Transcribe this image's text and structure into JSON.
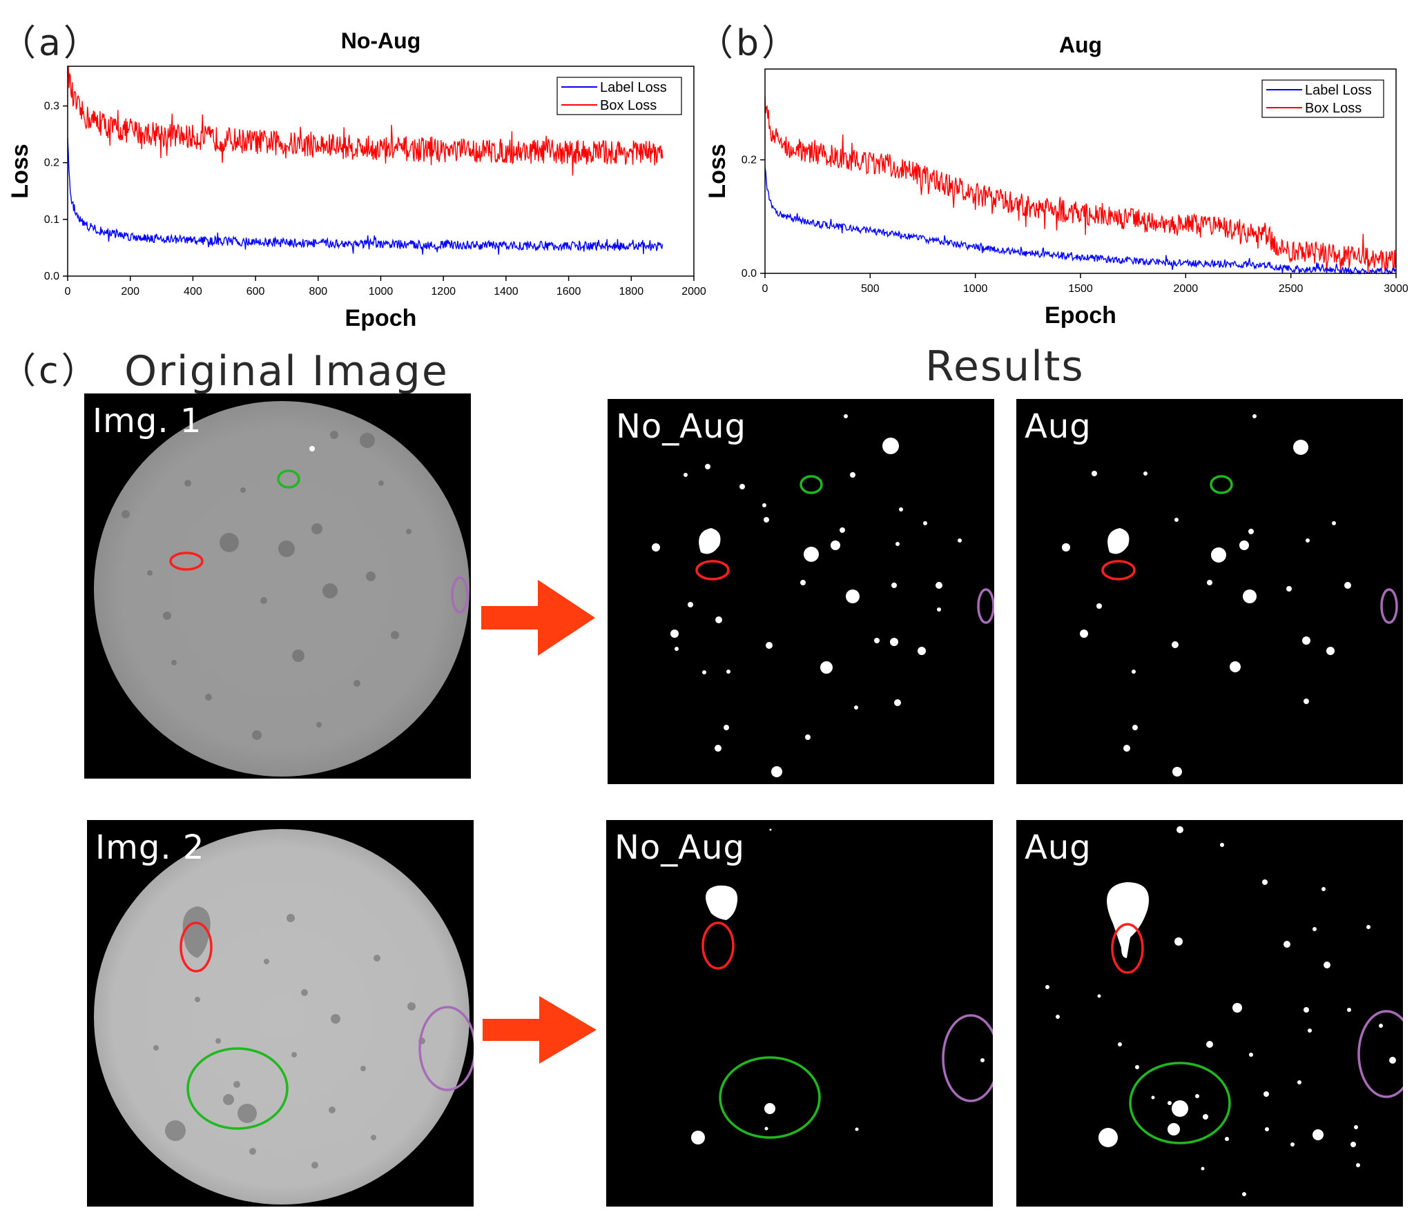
{
  "panels": {
    "a": "（a）",
    "b": "（b）",
    "c": "（c）"
  },
  "chart_data": [
    {
      "type": "line",
      "title": "No-Aug",
      "xlabel": "Epoch",
      "ylabel": "Loss",
      "xlim": [
        0,
        2000
      ],
      "ylim": [
        0,
        0.37
      ],
      "xticks": [
        0,
        200,
        400,
        600,
        800,
        1000,
        1200,
        1400,
        1600,
        1800,
        2000
      ],
      "yticks": [
        0.0,
        0.1,
        0.2,
        0.3
      ],
      "ytick_labels": [
        "0.0",
        "0.1",
        "0.2",
        "0.3"
      ],
      "legend_position": "top-right",
      "series": [
        {
          "name": "Label Loss",
          "color": "#0000ff",
          "x": [
            0,
            5,
            10,
            20,
            40,
            60,
            100,
            150,
            200,
            300,
            400,
            600,
            800,
            1000,
            1200,
            1400,
            1600,
            1800,
            1900
          ],
          "y": [
            0.24,
            0.17,
            0.14,
            0.12,
            0.1,
            0.09,
            0.08,
            0.075,
            0.07,
            0.066,
            0.063,
            0.06,
            0.058,
            0.056,
            0.055,
            0.054,
            0.053,
            0.052,
            0.052
          ],
          "noise": 0.008
        },
        {
          "name": "Box Loss",
          "color": "#ff0000",
          "x": [
            0,
            5,
            10,
            20,
            40,
            60,
            100,
            150,
            200,
            300,
            400,
            600,
            800,
            1000,
            1200,
            1400,
            1600,
            1800,
            1900
          ],
          "y": [
            0.37,
            0.35,
            0.33,
            0.31,
            0.29,
            0.28,
            0.27,
            0.26,
            0.255,
            0.25,
            0.245,
            0.237,
            0.23,
            0.225,
            0.222,
            0.22,
            0.219,
            0.218,
            0.217
          ],
          "noise": 0.022
        }
      ]
    },
    {
      "type": "line",
      "title": "Aug",
      "xlabel": "Epoch",
      "ylabel": "Loss",
      "xlim": [
        0,
        3000
      ],
      "ylim": [
        0,
        0.36
      ],
      "xticks": [
        0,
        500,
        1000,
        1500,
        2000,
        2500,
        3000
      ],
      "yticks": [
        0.0,
        0.2
      ],
      "ytick_labels": [
        "0.0",
        "0.2"
      ],
      "legend_position": "top-right",
      "series": [
        {
          "name": "Label Loss",
          "color": "#0000ff",
          "x": [
            0,
            10,
            30,
            60,
            100,
            200,
            400,
            600,
            800,
            1000,
            1200,
            1500,
            1800,
            2000,
            2300,
            2400,
            2500,
            2800,
            3000
          ],
          "y": [
            0.19,
            0.15,
            0.12,
            0.105,
            0.1,
            0.09,
            0.08,
            0.07,
            0.058,
            0.046,
            0.037,
            0.028,
            0.021,
            0.018,
            0.015,
            0.013,
            0.008,
            0.005,
            0.004
          ],
          "noise": 0.006
        },
        {
          "name": "Box Loss",
          "color": "#ff0000",
          "x": [
            0,
            10,
            30,
            60,
            100,
            200,
            400,
            600,
            800,
            1000,
            1200,
            1500,
            1800,
            2000,
            2200,
            2390,
            2420,
            2500,
            2800,
            3000
          ],
          "y": [
            0.31,
            0.28,
            0.25,
            0.235,
            0.225,
            0.215,
            0.2,
            0.19,
            0.165,
            0.14,
            0.122,
            0.105,
            0.092,
            0.085,
            0.078,
            0.07,
            0.05,
            0.04,
            0.028,
            0.022
          ],
          "noise": 0.02
        }
      ]
    }
  ],
  "section_c": {
    "original_title": "Original Image",
    "results_title": "Results",
    "img1_label": "Img. 1",
    "img2_label": "Img. 2",
    "no_aug_label": "No_Aug",
    "aug_label": "Aug"
  },
  "colors": {
    "arrow": "#ff3d0f",
    "red_marker": "#ff1f1f",
    "green_marker": "#1fb81f",
    "purple_marker": "#a86bb8"
  }
}
